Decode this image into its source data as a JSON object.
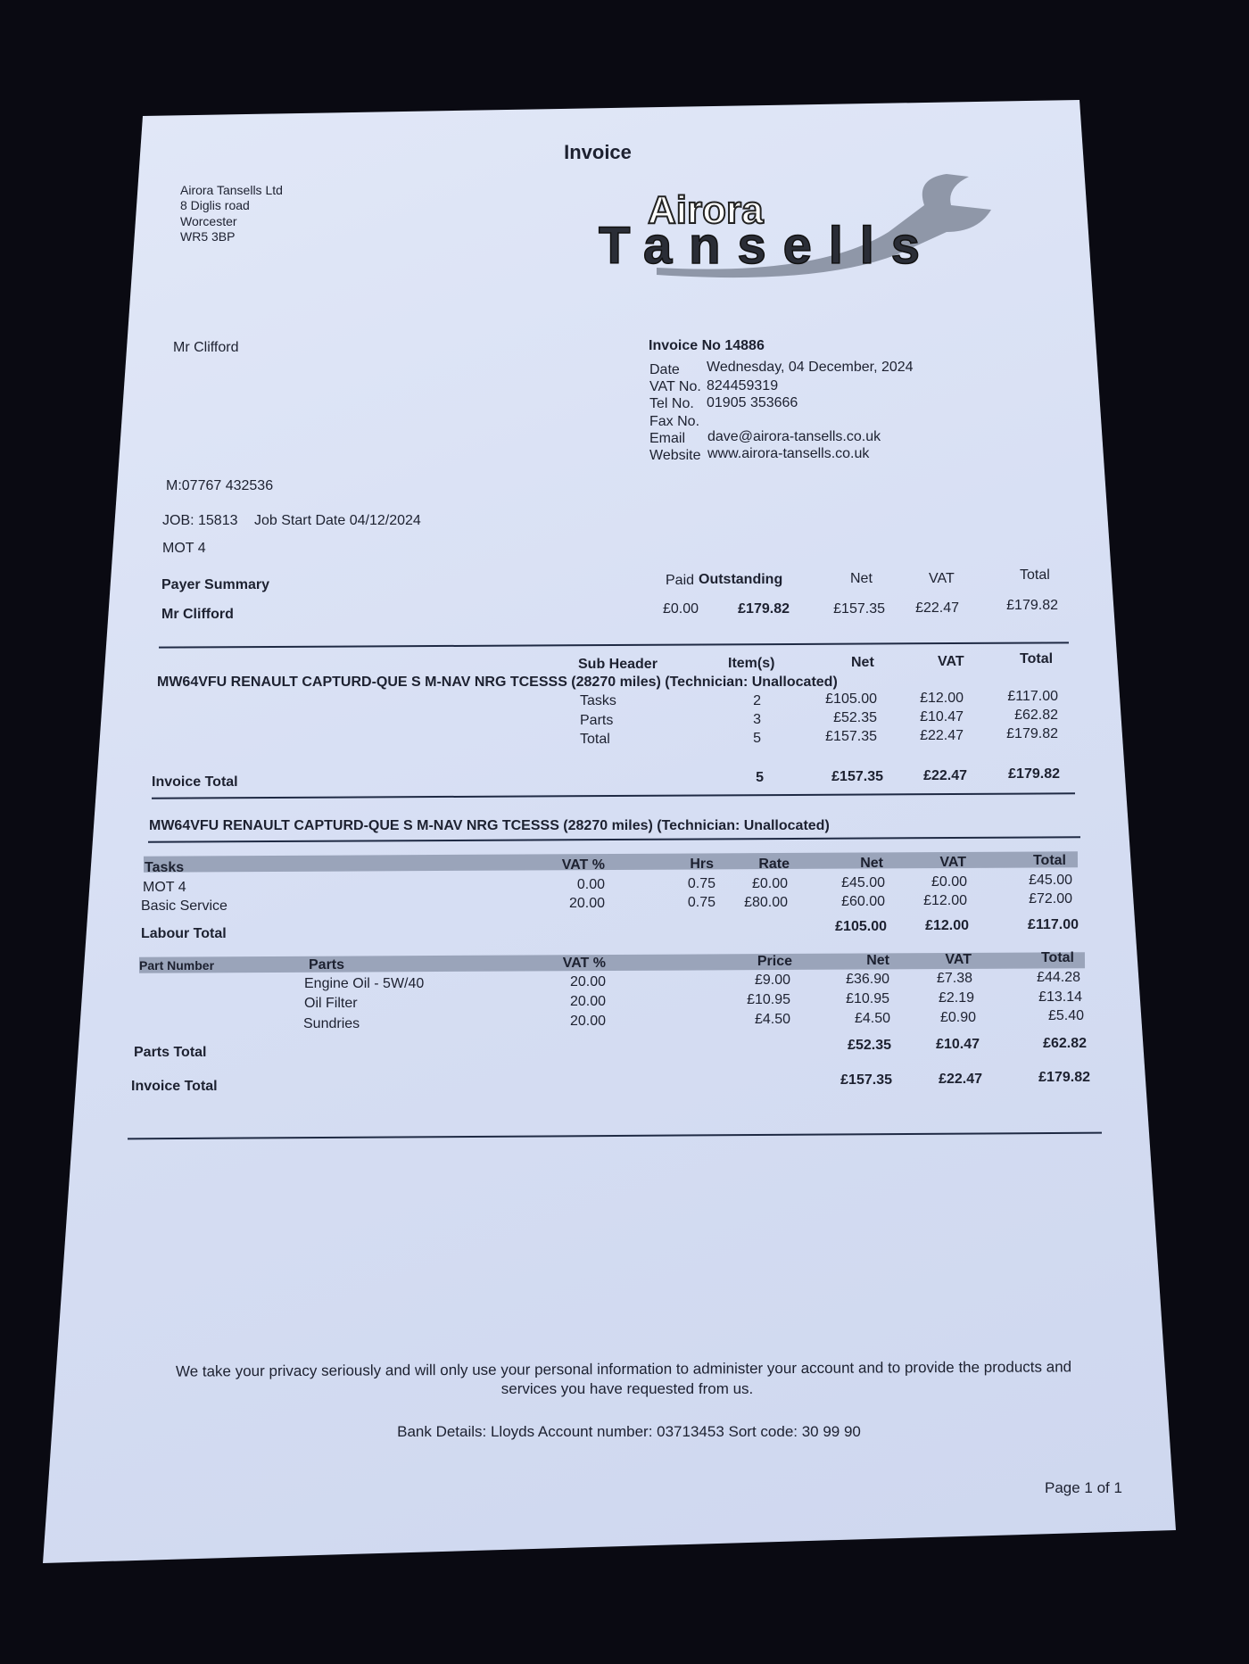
{
  "title": "Invoice",
  "company": {
    "logo_text": "Airora Tansells",
    "address": [
      "Airora Tansells Ltd",
      "8 Diglis road",
      "Worcester",
      "WR5 3BP"
    ]
  },
  "customer": {
    "name": "Mr Clifford",
    "mobile": "M:07767 432536",
    "job": "JOB: 15813",
    "job_start": "Job Start Date 04/12/2024",
    "job_desc": "MOT 4"
  },
  "invoice": {
    "number_label": "Invoice No 14886",
    "details": [
      {
        "label": "Date",
        "value": "Wednesday, 04 December, 2024"
      },
      {
        "label": "VAT No.",
        "value": "824459319"
      },
      {
        "label": "Tel No.",
        "value": "01905 353666"
      },
      {
        "label": "Fax No.",
        "value": ""
      },
      {
        "label": "Email",
        "value": "dave@airora-tansells.co.uk"
      },
      {
        "label": "Website",
        "value": "www.airora-tansells.co.uk"
      }
    ]
  },
  "payer_summary": {
    "heading": "Payer Summary",
    "name": "Mr Clifford",
    "headers": {
      "paid": "Paid",
      "outstanding": "Outstanding",
      "net": "Net",
      "vat": "VAT",
      "total": "Total"
    },
    "values": {
      "paid": "£0.00",
      "outstanding": "£179.82",
      "net": "£157.35",
      "vat": "£22.47",
      "total": "£179.82"
    }
  },
  "summary": {
    "headers": {
      "sub": "Sub Header",
      "items": "Item(s)",
      "net": "Net",
      "vat": "VAT",
      "total": "Total"
    },
    "vehicle": "MW64VFU RENAULT CAPTURD-QUE S M-NAV NRG TCESSS (28270 miles) (Technician: Unallocated)",
    "rows": [
      {
        "label": "Tasks",
        "items": "2",
        "net": "£105.00",
        "vat": "£12.00",
        "total": "£117.00"
      },
      {
        "label": "Parts",
        "items": "3",
        "net": "£52.35",
        "vat": "£10.47",
        "total": "£62.82"
      },
      {
        "label": "Total",
        "items": "5",
        "net": "£157.35",
        "vat": "£22.47",
        "total": "£179.82"
      }
    ],
    "invoice_total": {
      "label": "Invoice Total",
      "items": "5",
      "net": "£157.35",
      "vat": "£22.47",
      "total": "£179.82"
    }
  },
  "detail": {
    "vehicle": "MW64VFU RENAULT CAPTURD-QUE S M-NAV NRG TCESSS (28270 miles) (Technician: Unallocated)",
    "tasks_headers": {
      "name": "Tasks",
      "vat_pct": "VAT %",
      "hrs": "Hrs",
      "rate": "Rate",
      "net": "Net",
      "vat": "VAT",
      "total": "Total"
    },
    "tasks": [
      {
        "name": "MOT 4",
        "vat_pct": "0.00",
        "hrs": "0.75",
        "rate": "£0.00",
        "net": "£45.00",
        "vat": "£0.00",
        "total": "£45.00"
      },
      {
        "name": "Basic Service",
        "vat_pct": "20.00",
        "hrs": "0.75",
        "rate": "£80.00",
        "net": "£60.00",
        "vat": "£12.00",
        "total": "£72.00"
      }
    ],
    "labour_total": {
      "label": "Labour Total",
      "net": "£105.00",
      "vat": "£12.00",
      "total": "£117.00"
    },
    "parts_headers": {
      "part_number": "Part Number",
      "name": "Parts",
      "vat_pct": "VAT %",
      "price": "Price",
      "net": "Net",
      "vat": "VAT",
      "total": "Total"
    },
    "parts": [
      {
        "name": "Engine Oil - 5W/40",
        "vat_pct": "20.00",
        "price": "£9.00",
        "net": "£36.90",
        "vat": "£7.38",
        "total": "£44.28"
      },
      {
        "name": "Oil Filter",
        "vat_pct": "20.00",
        "price": "£10.95",
        "net": "£10.95",
        "vat": "£2.19",
        "total": "£13.14"
      },
      {
        "name": "Sundries",
        "vat_pct": "20.00",
        "price": "£4.50",
        "net": "£4.50",
        "vat": "£0.90",
        "total": "£5.40"
      }
    ],
    "parts_total": {
      "label": "Parts Total",
      "net": "£52.35",
      "vat": "£10.47",
      "total": "£62.82"
    },
    "invoice_total": {
      "label": "Invoice Total",
      "net": "£157.35",
      "vat": "£22.47",
      "total": "£179.82"
    }
  },
  "footer": {
    "privacy_line1": "We take your privacy seriously and will only use your personal information to administer your account and to provide the products and",
    "privacy_line2": "services you have requested from us.",
    "bank": "Bank Details: Lloyds  Account number: 03713453  Sort code: 30 99 90",
    "page": "Page 1 of 1"
  }
}
